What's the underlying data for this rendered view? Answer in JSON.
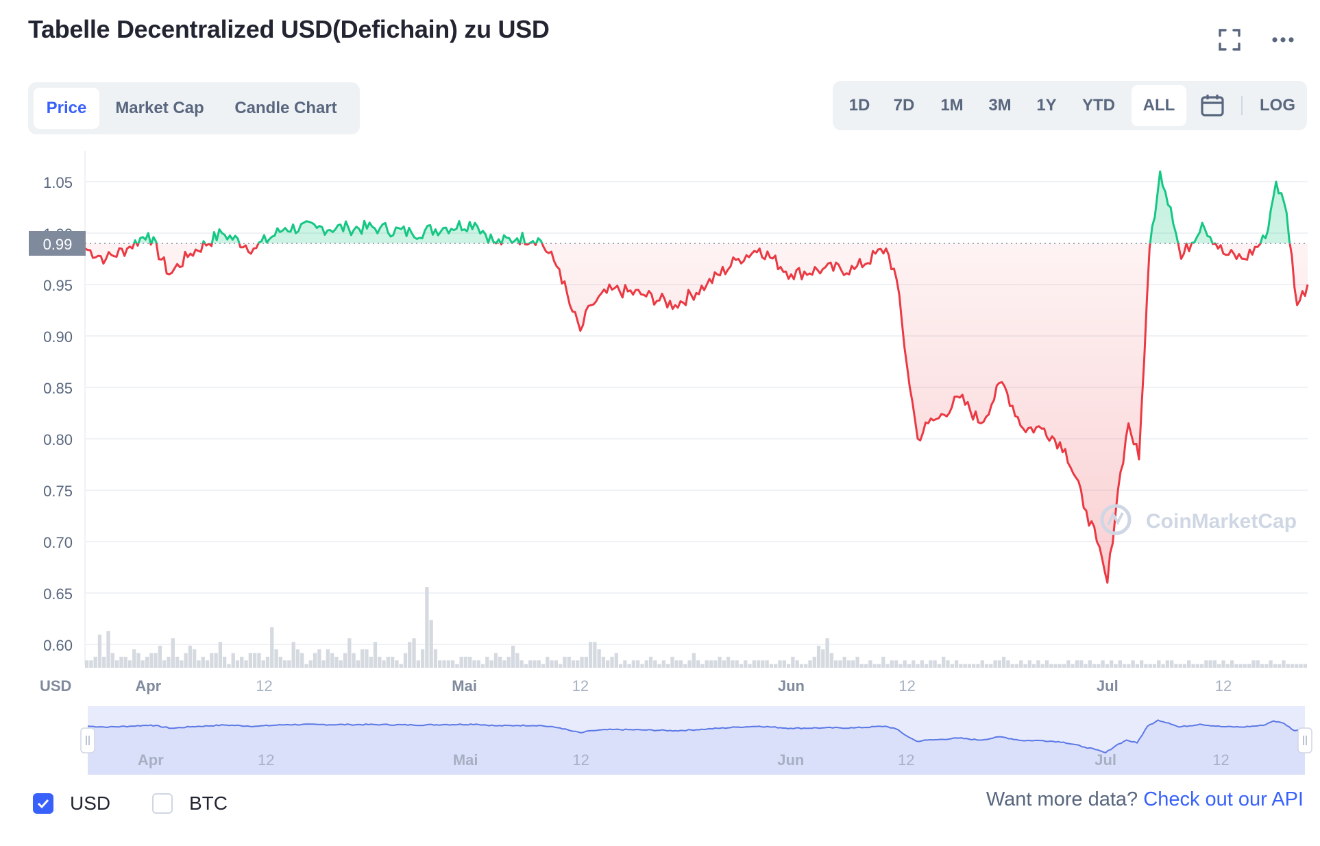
{
  "title": "Tabelle Decentralized USD(Defichain) zu USD",
  "tabs": [
    "Price",
    "Market Cap",
    "Candle Chart"
  ],
  "active_tab": "Price",
  "ranges": [
    "1D",
    "7D",
    "1M",
    "3M",
    "1Y",
    "YTD",
    "ALL"
  ],
  "active_range": "ALL",
  "log_label": "LOG",
  "icons": {
    "fullscreen": "fullscreen-icon",
    "more": "more-icon",
    "calendar": "calendar-icon"
  },
  "colors": {
    "up": "#16c784",
    "down": "#ea3943",
    "accent": "#3861fb",
    "navigator": "#5b78e6"
  },
  "watermark": "CoinMarketCap",
  "legend": {
    "usd": "USD",
    "btc": "BTC"
  },
  "footer": {
    "text": "Want more data?",
    "link": "Check out our API"
  },
  "chart_data": {
    "type": "line",
    "ylabel": "USD",
    "ylim": [
      0.58,
      1.08
    ],
    "yticks": [
      0.6,
      0.65,
      0.7,
      0.75,
      0.8,
      0.85,
      0.9,
      0.95,
      1.0,
      1.05
    ],
    "yticks_labels": [
      "0.60",
      "0.65",
      "0.70",
      "0.75",
      "0.80",
      "0.85",
      "0.90",
      "0.95",
      "1.00",
      "1.05"
    ],
    "xlim": [
      "2022-03-26",
      "2022-07-20"
    ],
    "xticks": [
      "Apr",
      "12",
      "Mai",
      "12",
      "Jun",
      "12",
      "Jul",
      "12"
    ],
    "xticks_dates": [
      "2022-04-01",
      "2022-04-12",
      "2022-05-01",
      "2022-05-12",
      "2022-06-01",
      "2022-06-12",
      "2022-07-01",
      "2022-07-12"
    ],
    "reference_value": 0.99,
    "reference_label": "0.99",
    "grid": true,
    "series": [
      {
        "x": [
          "2022-03-26",
          "2022-03-28",
          "2022-03-30",
          "2022-04-01",
          "2022-04-03",
          "2022-04-05",
          "2022-04-08",
          "2022-04-11",
          "2022-04-14",
          "2022-04-17",
          "2022-04-20",
          "2022-04-23",
          "2022-04-26",
          "2022-04-29",
          "2022-05-02",
          "2022-05-04",
          "2022-05-06",
          "2022-05-08",
          "2022-05-10",
          "2022-05-11",
          "2022-05-12",
          "2022-05-13",
          "2022-05-15",
          "2022-05-18",
          "2022-05-21",
          "2022-05-24",
          "2022-05-27",
          "2022-05-29",
          "2022-06-01",
          "2022-06-04",
          "2022-06-07",
          "2022-06-10",
          "2022-06-11",
          "2022-06-12",
          "2022-06-13",
          "2022-06-14",
          "2022-06-15",
          "2022-06-17",
          "2022-06-19",
          "2022-06-21",
          "2022-06-23",
          "2022-06-25",
          "2022-06-27",
          "2022-06-29",
          "2022-06-30",
          "2022-07-01",
          "2022-07-02",
          "2022-07-03",
          "2022-07-04",
          "2022-07-05",
          "2022-07-06",
          "2022-07-07",
          "2022-07-08",
          "2022-07-10",
          "2022-07-12",
          "2022-07-14",
          "2022-07-16",
          "2022-07-17",
          "2022-07-18",
          "2022-07-19",
          "2022-07-20"
        ],
        "values": [
          0.985,
          0.975,
          0.985,
          1.0,
          0.96,
          0.98,
          1.0,
          0.985,
          1.005,
          1.005,
          1.005,
          1.005,
          1.0,
          1.005,
          1.01,
          0.99,
          0.995,
          0.995,
          0.965,
          0.93,
          0.905,
          0.93,
          0.945,
          0.94,
          0.93,
          0.95,
          0.975,
          0.985,
          0.96,
          0.965,
          0.965,
          0.985,
          0.955,
          0.87,
          0.8,
          0.815,
          0.82,
          0.84,
          0.815,
          0.855,
          0.81,
          0.81,
          0.79,
          0.73,
          0.7,
          0.66,
          0.75,
          0.815,
          0.78,
          0.985,
          1.06,
          1.025,
          0.975,
          1.01,
          0.98,
          0.975,
          0.995,
          1.05,
          1.02,
          0.93,
          0.95
        ]
      }
    ],
    "volume": [
      2,
      2,
      3,
      9,
      3,
      10,
      4,
      2,
      3,
      3,
      2,
      5,
      4,
      2,
      3,
      4,
      4,
      6,
      2,
      3,
      8,
      3,
      2,
      4,
      6,
      5,
      2,
      3,
      2,
      4,
      4,
      7,
      3,
      1,
      4,
      2,
      3,
      2,
      4,
      4,
      4,
      2,
      3,
      11,
      5,
      3,
      2,
      2,
      7,
      5,
      4,
      1,
      2,
      4,
      5,
      2,
      5,
      4,
      3,
      2,
      4,
      8,
      4,
      2,
      5,
      5,
      3,
      7,
      3,
      2,
      3,
      3,
      2,
      1,
      4,
      7,
      8,
      2,
      5,
      22,
      13,
      5,
      2,
      2,
      2,
      2,
      1,
      3,
      3,
      3,
      2,
      2,
      1,
      3,
      2,
      4,
      3,
      2,
      3,
      6,
      4,
      2,
      1,
      2,
      2,
      2,
      1,
      3,
      2,
      2,
      1,
      3,
      3,
      2,
      2,
      3,
      3,
      7,
      7,
      5,
      3,
      2,
      3,
      4,
      1,
      2,
      1,
      2,
      2,
      1,
      2,
      3,
      2,
      1,
      2,
      1,
      3,
      2,
      2,
      1,
      2,
      4,
      2,
      1,
      2,
      2,
      2,
      3,
      2,
      3,
      2,
      2,
      1,
      2,
      1,
      2,
      2,
      2,
      2,
      1,
      1,
      2,
      2,
      1,
      3,
      2,
      1,
      1,
      2,
      3,
      6,
      5,
      8,
      4,
      2,
      2,
      3,
      2,
      2,
      3,
      1,
      1,
      2,
      1,
      1,
      3,
      1,
      2,
      2,
      1,
      2,
      1,
      2,
      1,
      2,
      1,
      2,
      2,
      1,
      3,
      2,
      1,
      2,
      1,
      1,
      1,
      1,
      1,
      2,
      1,
      1,
      2,
      2,
      3,
      2,
      1,
      1,
      2,
      1,
      2,
      1,
      2,
      1,
      2,
      1,
      1,
      1,
      1,
      2,
      1,
      2,
      2,
      1,
      2,
      1,
      1,
      2,
      1,
      2,
      1,
      2,
      1,
      1,
      2,
      1,
      2,
      1,
      1,
      1,
      2,
      1,
      2,
      2,
      1,
      1,
      1,
      2,
      1,
      1,
      1,
      2,
      2,
      2,
      1,
      2,
      1,
      2,
      1,
      1,
      1,
      1,
      2,
      2,
      1,
      1,
      2,
      1,
      1,
      2,
      1,
      1,
      1,
      1,
      1
    ]
  }
}
